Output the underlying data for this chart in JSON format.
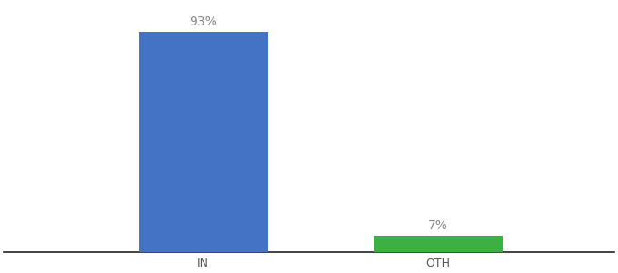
{
  "categories": [
    "IN",
    "OTH"
  ],
  "values": [
    93,
    7
  ],
  "bar_colors": [
    "#4472c4",
    "#3cb043"
  ],
  "labels": [
    "93%",
    "7%"
  ],
  "background_color": "#ffffff",
  "ylim": [
    0,
    105
  ],
  "bar_width": 0.55,
  "label_fontsize": 10,
  "tick_fontsize": 9,
  "label_color": "#888888"
}
